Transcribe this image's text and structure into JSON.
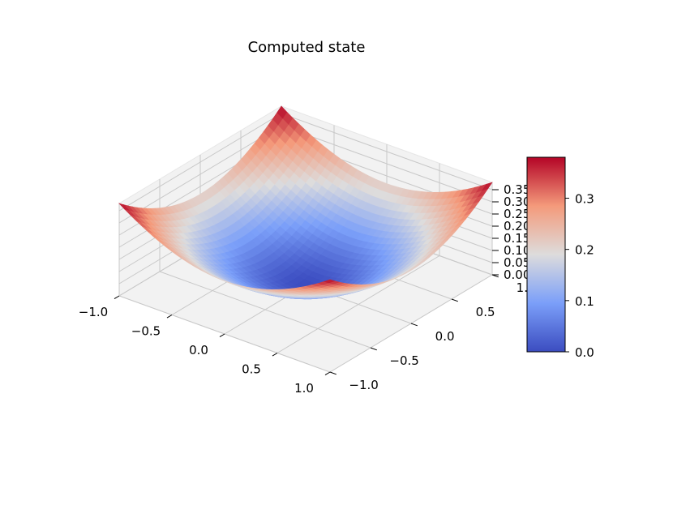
{
  "chart_data": {
    "type": "surface3d",
    "title": "Computed state",
    "colormap": "coolwarm",
    "x": {
      "min": -1.0,
      "max": 1.0,
      "ticks": [
        -1.0,
        -0.5,
        0.0,
        0.5,
        1.0
      ],
      "tick_labels": [
        "−1.0",
        "−0.5",
        "0.0",
        "0.5",
        "1.0"
      ]
    },
    "y": {
      "min": -1.0,
      "max": 1.0,
      "ticks": [
        -1.0,
        -0.5,
        0.0,
        0.5,
        1.0
      ],
      "tick_labels": [
        "−1.0",
        "−0.5",
        "0.0",
        "0.5",
        "1.0"
      ]
    },
    "z": {
      "min": 0.0,
      "max": 0.38,
      "ticks": [
        0.0,
        0.05,
        0.1,
        0.15,
        0.2,
        0.25,
        0.3,
        0.35
      ],
      "tick_labels": [
        "0.00",
        "0.05",
        "0.10",
        "0.15",
        "0.20",
        "0.25",
        "0.30",
        "0.35"
      ]
    },
    "surface": {
      "description_values": {
        "center_min": 0.0,
        "edge_mid": 0.19,
        "corner_max": 0.38
      },
      "grid_x": [
        -1.0,
        -0.75,
        -0.5,
        -0.25,
        0.0,
        0.25,
        0.5,
        0.75,
        1.0
      ],
      "grid_y": [
        -1.0,
        -0.75,
        -0.5,
        -0.25,
        0.0,
        0.25,
        0.5,
        0.75,
        1.0
      ]
    },
    "colorbar": {
      "min": 0.0,
      "max": 0.38,
      "ticks": [
        0.0,
        0.1,
        0.2,
        0.3
      ],
      "tick_labels": [
        "0.0",
        "0.1",
        "0.2",
        "0.3"
      ]
    },
    "grid": true
  }
}
